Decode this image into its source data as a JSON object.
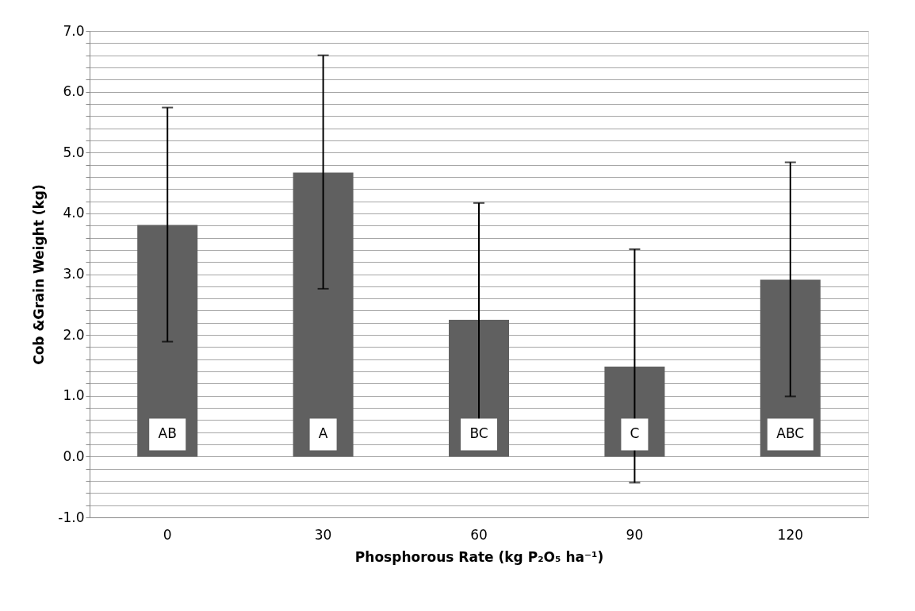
{
  "chart_data": {
    "type": "bar",
    "xlabel": "Phosphorous Rate (kg P₂O₅ ha⁻¹)",
    "ylabel": "Cob &Grain Weight (kg)",
    "categories": [
      "0",
      "30",
      "60",
      "90",
      "120"
    ],
    "series": [
      {
        "color": "#606060",
        "values": [
          3.81,
          4.67,
          2.25,
          1.48,
          2.91
        ],
        "errors": [
          [
            1.89,
            5.74
          ],
          [
            2.76,
            6.6
          ],
          [
            0.33,
            4.17
          ],
          [
            -0.43,
            3.41
          ],
          [
            0.99,
            4.84
          ]
        ]
      }
    ],
    "ylim": [
      -1.0,
      7.0
    ],
    "yticks": [
      {
        "value": -1.0,
        "label": "-1.0"
      },
      {
        "value": -0.8,
        "label": null
      },
      {
        "value": -0.6,
        "label": null
      },
      {
        "value": -0.4,
        "label": null
      },
      {
        "value": -0.2,
        "label": null
      },
      {
        "value": 0.0,
        "label": "0.0"
      },
      {
        "value": 0.2,
        "label": null
      },
      {
        "value": 0.4,
        "label": null
      },
      {
        "value": 0.6,
        "label": null
      },
      {
        "value": 0.8,
        "label": null
      },
      {
        "value": 1.0,
        "label": "1.0"
      },
      {
        "value": 1.2,
        "label": null
      },
      {
        "value": 1.4,
        "label": null
      },
      {
        "value": 1.6,
        "label": null
      },
      {
        "value": 1.8,
        "label": null
      },
      {
        "value": 2.0,
        "label": "2.0"
      },
      {
        "value": 2.2,
        "label": null
      },
      {
        "value": 2.4,
        "label": null
      },
      {
        "value": 2.6,
        "label": null
      },
      {
        "value": 2.8,
        "label": null
      },
      {
        "value": 3.0,
        "label": "3.0"
      },
      {
        "value": 3.2,
        "label": null
      },
      {
        "value": 3.4,
        "label": null
      },
      {
        "value": 3.6,
        "label": null
      },
      {
        "value": 3.8,
        "label": null
      },
      {
        "value": 4.0,
        "label": "4.0"
      },
      {
        "value": 4.2,
        "label": null
      },
      {
        "value": 4.4,
        "label": null
      },
      {
        "value": 4.6,
        "label": null
      },
      {
        "value": 4.8,
        "label": null
      },
      {
        "value": 5.0,
        "label": "5.0"
      },
      {
        "value": 5.2,
        "label": null
      },
      {
        "value": 5.4,
        "label": null
      },
      {
        "value": 5.6,
        "label": null
      },
      {
        "value": 5.8,
        "label": null
      },
      {
        "value": 6.0,
        "label": "6.0"
      },
      {
        "value": 6.2,
        "label": null
      },
      {
        "value": 6.4,
        "label": null
      },
      {
        "value": 6.6,
        "label": null
      },
      {
        "value": 6.8,
        "label": null
      },
      {
        "value": 7.0,
        "label": "7.0"
      }
    ],
    "grid": "y",
    "annotations": [
      "AB",
      "A",
      "BC",
      "C",
      "ABC"
    ]
  }
}
